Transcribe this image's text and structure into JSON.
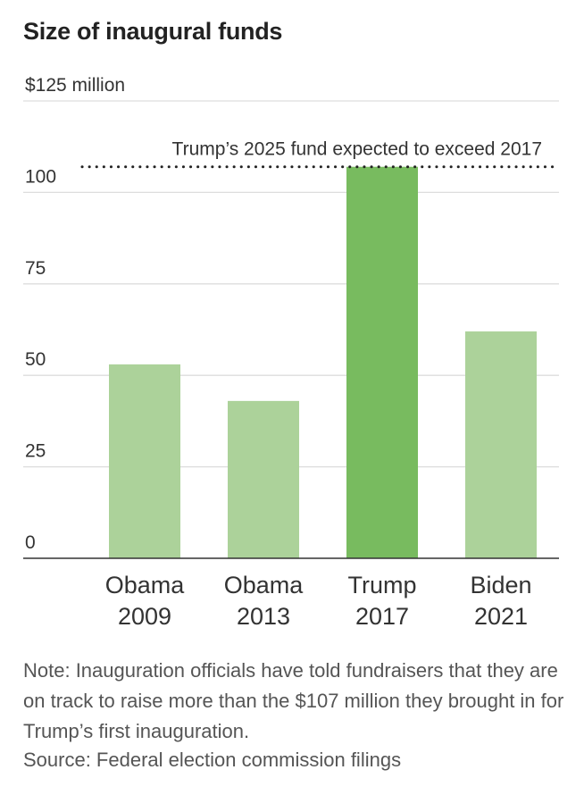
{
  "chart_data": {
    "type": "bar",
    "title": "Size of inaugural funds",
    "ylabel": "$125 million",
    "ylim": [
      0,
      125
    ],
    "yticks": [
      {
        "value": 0,
        "label": "0"
      },
      {
        "value": 25,
        "label": "25"
      },
      {
        "value": 50,
        "label": "50"
      },
      {
        "value": 75,
        "label": "75"
      },
      {
        "value": 100,
        "label": "100"
      },
      {
        "value": 125,
        "label": "$125 million"
      }
    ],
    "categories": [
      {
        "line1": "Obama",
        "line2": "2009"
      },
      {
        "line1": "Obama",
        "line2": "2013"
      },
      {
        "line1": "Trump",
        "line2": "2017"
      },
      {
        "line1": "Biden",
        "line2": "2021"
      }
    ],
    "values": [
      53,
      43,
      107,
      62
    ],
    "highlight_index": 2,
    "reference_line": {
      "value": 107,
      "label": "Trump’s 2025 fund expected to exceed 2017"
    },
    "colors": {
      "bar": "#acd29a",
      "highlight": "#78bb5f",
      "grid": "#dddddd",
      "axis": "#333333"
    }
  },
  "note": "Note: Inauguration officials have told fundraisers that they are on track to raise more than the $107 million they brought in for Trump’s first inauguration.",
  "source": "Source: Federal election commission filings"
}
